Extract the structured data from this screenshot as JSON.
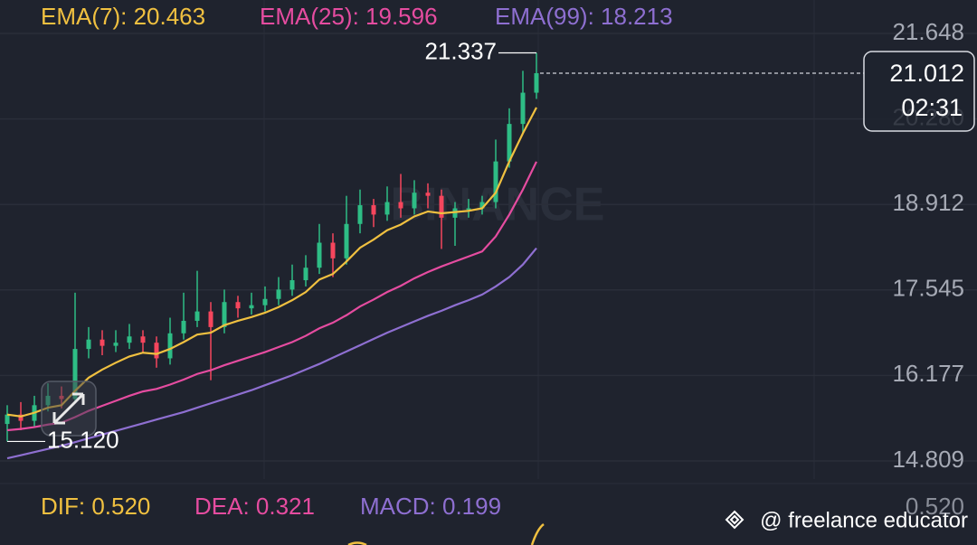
{
  "chart_data": {
    "type": "candlestick",
    "legend": [
      "EMA(7): 20.463",
      "EMA(25): 19.596",
      "EMA(99): 18.213"
    ],
    "up_color": "#2ebd85",
    "down_color": "#f6465d",
    "open": [
      15.4,
      15.55,
      15.45,
      15.7,
      15.85,
      15.8,
      16.6,
      16.75,
      16.65,
      16.7,
      16.8,
      16.7,
      16.45,
      16.85,
      17.05,
      17.2,
      16.95,
      17.35,
      17.25,
      17.3,
      17.4,
      17.55,
      17.7,
      17.9,
      18.3,
      18.05,
      18.6,
      18.9,
      18.75,
      18.95,
      18.85,
      19.1,
      19.05,
      18.7,
      18.85,
      18.85,
      18.95,
      19.6,
      20.2,
      20.7
    ],
    "high": [
      15.7,
      15.75,
      15.85,
      16.05,
      16.0,
      17.5,
      16.95,
      16.9,
      16.9,
      17.0,
      16.9,
      16.8,
      17.1,
      17.5,
      17.85,
      17.35,
      17.55,
      17.45,
      17.5,
      17.6,
      17.75,
      17.95,
      18.1,
      18.6,
      18.45,
      19.05,
      19.15,
      19.0,
      19.2,
      19.4,
      19.3,
      19.25,
      19.15,
      18.95,
      19.0,
      19.05,
      19.95,
      20.45,
      21.05,
      21.337
    ],
    "low": [
      15.12,
      15.3,
      15.35,
      15.6,
      15.65,
      15.75,
      16.45,
      16.5,
      16.55,
      16.6,
      16.55,
      16.3,
      16.35,
      16.75,
      16.95,
      16.1,
      16.85,
      17.1,
      17.15,
      17.2,
      17.3,
      17.45,
      17.6,
      17.8,
      17.75,
      17.95,
      18.45,
      18.55,
      18.65,
      18.7,
      18.75,
      18.85,
      18.2,
      18.25,
      18.7,
      18.75,
      18.85,
      19.5,
      20.05,
      20.6
    ],
    "close": [
      15.55,
      15.45,
      15.7,
      15.85,
      15.8,
      16.6,
      16.75,
      16.65,
      16.7,
      16.8,
      16.7,
      16.45,
      16.85,
      17.05,
      17.2,
      16.95,
      17.35,
      17.25,
      17.3,
      17.4,
      17.55,
      17.7,
      17.9,
      18.3,
      18.05,
      18.6,
      18.9,
      18.75,
      18.95,
      18.85,
      19.1,
      19.05,
      18.7,
      18.85,
      18.85,
      18.95,
      19.6,
      20.2,
      20.7,
      21.012
    ],
    "series": [
      {
        "name": "EMA(7)",
        "color": "#f0c040",
        "values": [
          15.55,
          15.52,
          15.58,
          15.66,
          15.7,
          15.93,
          16.14,
          16.27,
          16.38,
          16.48,
          16.54,
          16.52,
          16.6,
          16.71,
          16.83,
          16.86,
          16.98,
          17.05,
          17.11,
          17.18,
          17.27,
          17.38,
          17.51,
          17.71,
          17.8,
          18.0,
          18.22,
          18.35,
          18.5,
          18.59,
          18.72,
          18.8,
          18.77,
          18.79,
          18.81,
          18.85,
          19.1,
          19.6,
          20.05,
          20.463
        ]
      },
      {
        "name": "EMA(25)",
        "color": "#e54ca0",
        "values": [
          15.3,
          15.32,
          15.35,
          15.39,
          15.42,
          15.51,
          15.61,
          15.69,
          15.77,
          15.85,
          15.92,
          15.96,
          16.03,
          16.11,
          16.2,
          16.26,
          16.34,
          16.41,
          16.48,
          16.55,
          16.63,
          16.71,
          16.81,
          16.93,
          17.02,
          17.14,
          17.28,
          17.39,
          17.51,
          17.61,
          17.73,
          17.83,
          17.92,
          18.0,
          18.08,
          18.16,
          18.4,
          18.75,
          19.15,
          19.596
        ]
      },
      {
        "name": "EMA(99)",
        "color": "#8e6fd1",
        "values": [
          14.85,
          14.9,
          14.95,
          15.0,
          15.05,
          15.11,
          15.17,
          15.23,
          15.29,
          15.35,
          15.41,
          15.47,
          15.53,
          15.59,
          15.66,
          15.73,
          15.8,
          15.87,
          15.94,
          16.02,
          16.1,
          16.18,
          16.27,
          16.36,
          16.46,
          16.56,
          16.66,
          16.76,
          16.86,
          16.95,
          17.04,
          17.13,
          17.21,
          17.3,
          17.38,
          17.47,
          17.6,
          17.75,
          17.95,
          18.213
        ]
      }
    ],
    "ylim": [
      14.519,
      22.183
    ],
    "yticks": [
      21.648,
      {
        "value": 20.28,
        "label": "20.280"
      },
      18.912,
      17.545,
      16.177,
      14.809
    ],
    "grid": true,
    "annotations": {
      "high": "21.337",
      "low": "15.120",
      "last_price": "21.012",
      "countdown": "02:31"
    },
    "indicator": {
      "dif": "DIF: 0.520",
      "dea": "DEA: 0.321",
      "macd": "MACD: 0.199",
      "axis_label": "0.520"
    },
    "watermark": "BINANCE",
    "footer": "@ freelance educator"
  }
}
